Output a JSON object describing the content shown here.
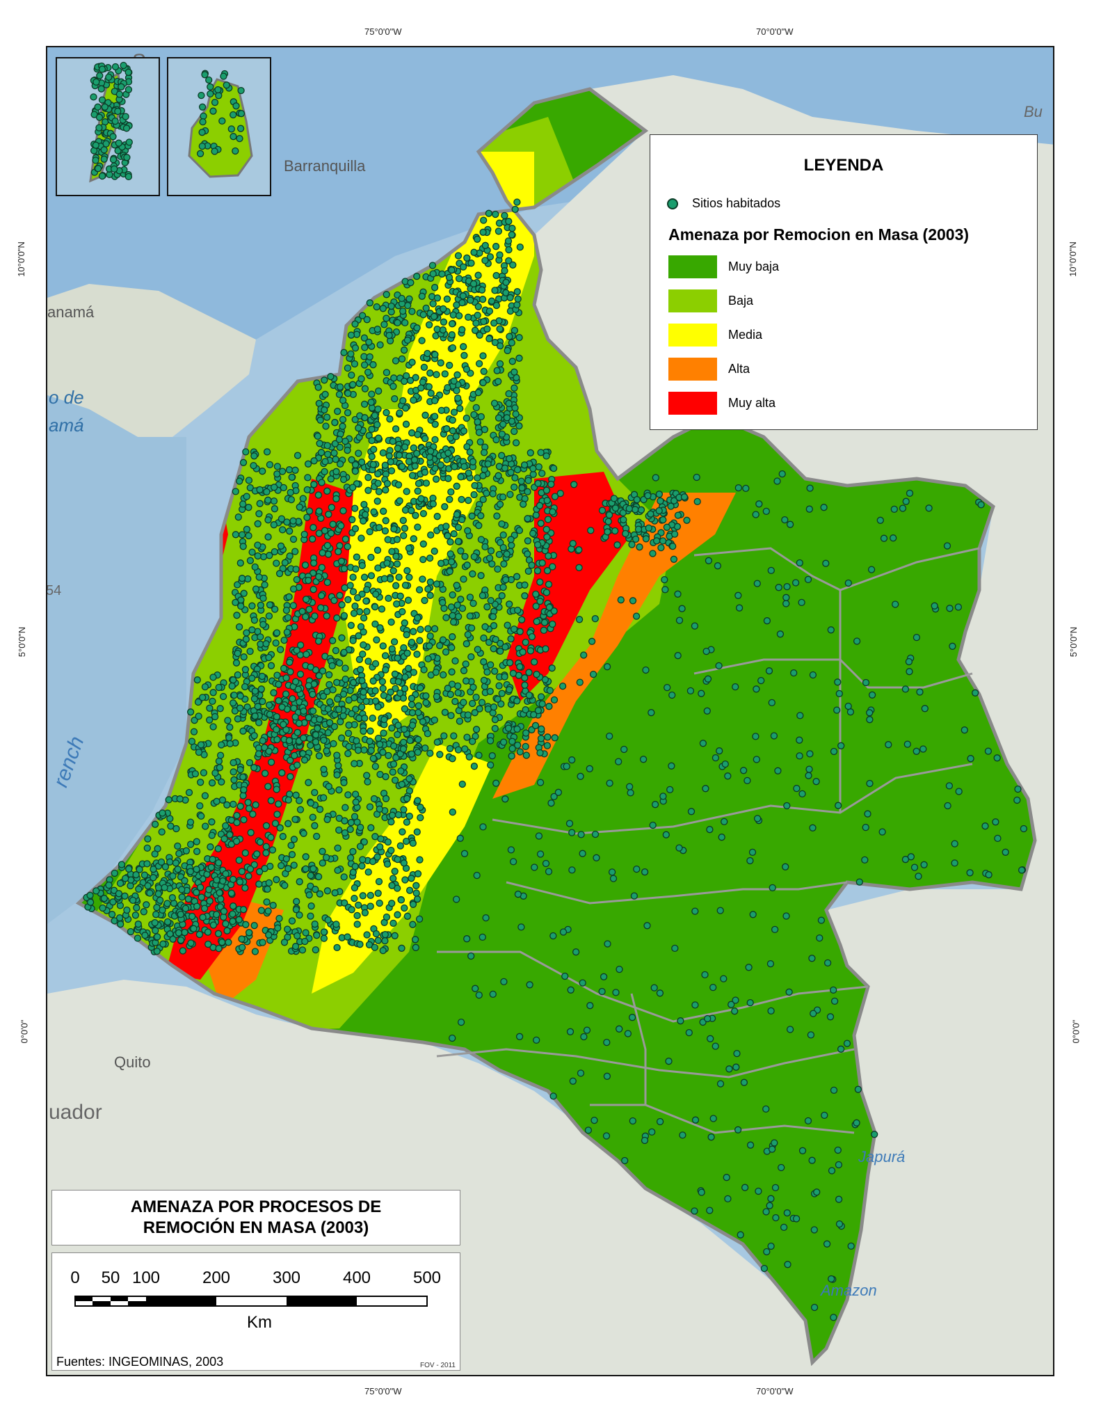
{
  "graticule": {
    "top_left": "75°0'0\"W",
    "top_right": "70°0'0\"W",
    "bottom_left": "75°0'0\"W",
    "bottom_right": "70°0'0\"W",
    "lat_10": "10°0'0\"N",
    "lat_5": "5°0'0\"N",
    "lat_0": "0°0'0\""
  },
  "basemap_labels": {
    "barranquilla": "Barranquilla",
    "panama": "anamá",
    "golfo": "o de",
    "panama2": "amá",
    "quito": "Quito",
    "ecuador": "uador",
    "japura": "Japurá",
    "amazon": "Amazon",
    "trench": "rench",
    "num54": "54",
    "sa": "Sa",
    "bu": "Bu"
  },
  "legend": {
    "title": "LEYENDA",
    "point_label": "Sitios habitados",
    "subtitle": "Amenaza por Remocion en Masa (2003)",
    "classes": [
      {
        "label": "Muy baja",
        "color": "#38a800"
      },
      {
        "label": "Baja",
        "color": "#8ccf00"
      },
      {
        "label": "Media",
        "color": "#ffff00"
      },
      {
        "label": "Alta",
        "color": "#ff8000"
      },
      {
        "label": "Muy alta",
        "color": "#ff0000"
      }
    ]
  },
  "map_title": {
    "line1": "AMENAZA POR PROCESOS DE",
    "line2": "REMOCIÓN EN MASA (2003)"
  },
  "scale_bar": {
    "labels": [
      "0",
      "50",
      "100",
      "200",
      "300",
      "400",
      "500"
    ],
    "unit": "Km"
  },
  "sources": "Fuentes: INGEOMINAS, 2003",
  "author": "FOV - 2011",
  "colors": {
    "sea": "#9fc3df",
    "land": "#d9dfd3",
    "settlement": "#1a9e6e",
    "border": "#9a9a9a"
  }
}
